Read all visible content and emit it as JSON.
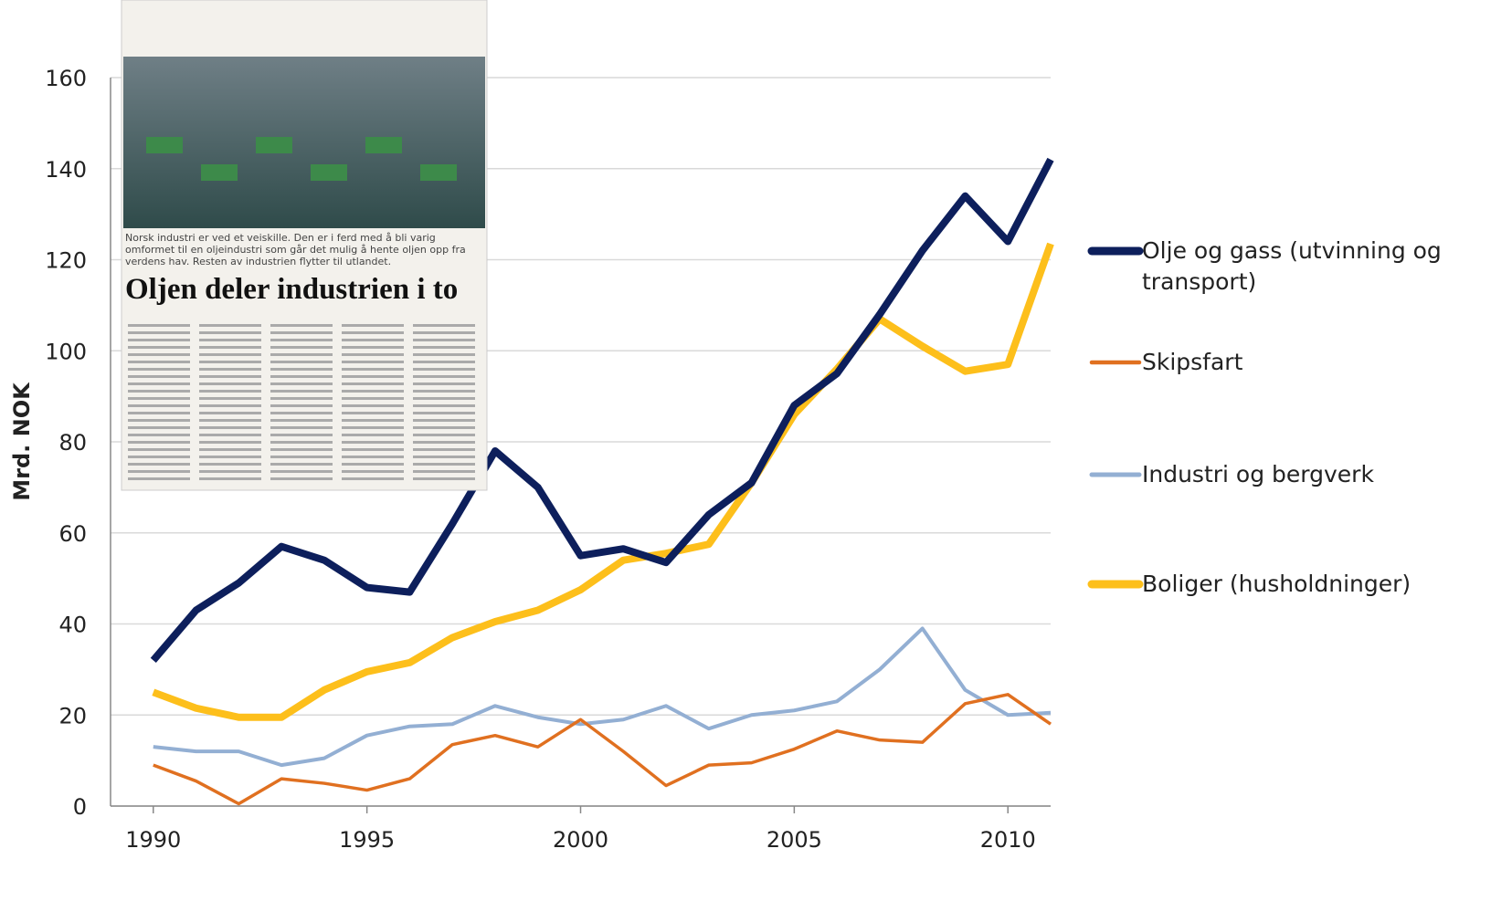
{
  "chart_data": {
    "type": "line",
    "y_label": "Mrd. NOK",
    "x": [
      1990,
      1991,
      1992,
      1993,
      1994,
      1995,
      1996,
      1997,
      1998,
      1999,
      2000,
      2001,
      2002,
      2003,
      2004,
      2005,
      2006,
      2007,
      2008,
      2009,
      2010,
      2011
    ],
    "series": [
      {
        "name": "Olje og gass (utvinning og transport)",
        "color": "#0d1f5c",
        "values": [
          32,
          43,
          49,
          57,
          54,
          48,
          47,
          62,
          78,
          70,
          55,
          56.5,
          53.5,
          64,
          71,
          88,
          95,
          108,
          122,
          134,
          124,
          142
        ]
      },
      {
        "name": "Skipsfart",
        "color": "#e07020",
        "values": [
          9,
          5.5,
          0.5,
          6,
          5,
          3.5,
          6,
          13.5,
          15.5,
          13,
          19,
          12,
          4.5,
          9,
          9.5,
          12.5,
          16.5,
          14.5,
          14,
          22.5,
          24.5,
          18
        ]
      },
      {
        "name": "Industri og bergverk",
        "color": "#93afd3",
        "values": [
          13,
          12,
          12,
          9,
          10.5,
          15.5,
          17.5,
          18,
          22,
          19.5,
          18,
          19,
          22,
          17,
          20,
          21,
          23,
          30,
          39,
          25.5,
          20,
          20.5
        ]
      },
      {
        "name": "Boliger (husholdninger)",
        "color": "#fdbf1b",
        "values": [
          25,
          21.5,
          19.5,
          19.5,
          25.5,
          29.5,
          31.5,
          37,
          40.5,
          43,
          47.5,
          54,
          55.5,
          57.5,
          71,
          86,
          96,
          107,
          101,
          95.5,
          97,
          123.5
        ]
      }
    ],
    "xlim": [
      1989,
      2011
    ],
    "xticks": [
      1990,
      1995,
      2000,
      2005,
      2010
    ],
    "ylim": [
      0,
      160
    ],
    "yticks": [
      0,
      20,
      40,
      60,
      80,
      100,
      120,
      140,
      160
    ],
    "annotations": [
      "Norsk industri er ved et veiskille. Den er i ferd med å bli varig omformet til en oljeindustri som går det mulig å hente oljen opp fra verdens hav. Resten av industrien flytter til utlandet.",
      "Oljen deler industrien i to"
    ]
  }
}
